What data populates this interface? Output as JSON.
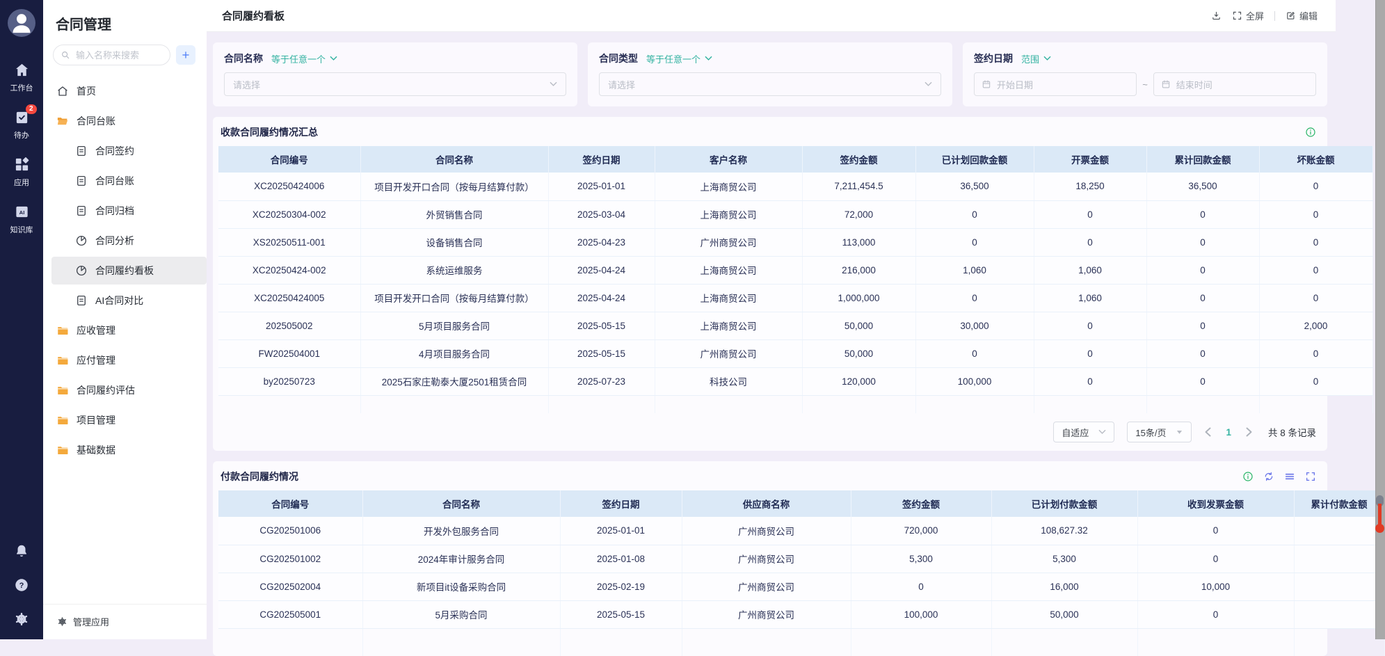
{
  "topbar": {
    "title": "合同履约看板",
    "fullscreen_label": "全屏",
    "edit_label": "编辑"
  },
  "rail": {
    "items": [
      {
        "icon": "home-solid",
        "label": "工作台"
      },
      {
        "icon": "todo",
        "label": "待办",
        "badge": "2"
      },
      {
        "icon": "apps",
        "label": "应用"
      },
      {
        "icon": "ai-book",
        "label": "知识库"
      }
    ],
    "bottom_icons": [
      "bell",
      "question",
      "gear"
    ]
  },
  "sidebar": {
    "title": "合同管理",
    "search_placeholder": "输入名称来搜索",
    "menu": [
      {
        "icon": "home",
        "label": "首页",
        "level": 1
      },
      {
        "icon": "folder-open",
        "label": "合同台账",
        "level": 1
      },
      {
        "icon": "doc",
        "label": "合同签约",
        "level": 2
      },
      {
        "icon": "doc",
        "label": "合同台账",
        "level": 2
      },
      {
        "icon": "doc",
        "label": "合同归档",
        "level": 2
      },
      {
        "icon": "pie",
        "label": "合同分析",
        "level": 2
      },
      {
        "icon": "pie",
        "label": "合同履约看板",
        "level": 2,
        "selected": true
      },
      {
        "icon": "doc",
        "label": "AI合同对比",
        "level": 2
      },
      {
        "icon": "folder",
        "label": "应收管理",
        "level": 1
      },
      {
        "icon": "folder",
        "label": "应付管理",
        "level": 1
      },
      {
        "icon": "folder",
        "label": "合同履约评估",
        "level": 1
      },
      {
        "icon": "folder",
        "label": "项目管理",
        "level": 1
      },
      {
        "icon": "folder",
        "label": "基础数据",
        "level": 1
      }
    ],
    "footer_label": "管理应用"
  },
  "filters": [
    {
      "type": "select",
      "label": "合同名称",
      "operator": "等于任意一个",
      "placeholder": "请选择"
    },
    {
      "type": "select",
      "label": "合同类型",
      "operator": "等于任意一个",
      "placeholder": "请选择"
    },
    {
      "type": "daterange",
      "label": "签约日期",
      "operator": "范围",
      "start_placeholder": "开始日期",
      "separator": "~",
      "end_placeholder": "结束时间"
    }
  ],
  "receivable_table": {
    "title": "收款合同履约情况汇总",
    "columns": [
      "合同编号",
      "合同名称",
      "签约日期",
      "客户名称",
      "签约金额",
      "已计划回款金额",
      "开票金额",
      "累计回款金额",
      "坏账金额"
    ],
    "rows": [
      [
        "XC20250424006",
        "项目开发开口合同（按每月结算付款）",
        "2025-01-01",
        "上海商贸公司",
        "7,211,454.5",
        "36,500",
        "18,250",
        "36,500",
        "0"
      ],
      [
        "XC20250304-002",
        "外贸销售合同",
        "2025-03-04",
        "上海商贸公司",
        "72,000",
        "0",
        "0",
        "0",
        "0"
      ],
      [
        "XS20250511-001",
        "设备销售合同",
        "2025-04-23",
        "广州商贸公司",
        "113,000",
        "0",
        "0",
        "0",
        "0"
      ],
      [
        "XC20250424-002",
        "系统运维服务",
        "2025-04-24",
        "上海商贸公司",
        "216,000",
        "1,060",
        "1,060",
        "0",
        "0"
      ],
      [
        "XC20250424005",
        "项目开发开口合同（按每月结算付款）",
        "2025-04-24",
        "上海商贸公司",
        "1,000,000",
        "0",
        "1,060",
        "0",
        "0"
      ],
      [
        "202505002",
        "5月项目服务合同",
        "2025-05-15",
        "上海商贸公司",
        "50,000",
        "30,000",
        "0",
        "0",
        "2,000"
      ],
      [
        "FW202504001",
        "4月项目服务合同",
        "2025-05-15",
        "广州商贸公司",
        "50,000",
        "0",
        "0",
        "0",
        "0"
      ],
      [
        "by20250723",
        "2025石家庄勒泰大厦2501租赁合同",
        "2025-07-23",
        "科技公司",
        "120,000",
        "100,000",
        "0",
        "0",
        "0"
      ]
    ]
  },
  "pagination": {
    "fit_label": "自适应",
    "page_size_label": "15条/页",
    "current_page": "1",
    "total_label": "共 8 条记录"
  },
  "payable_table": {
    "title": "付款合同履约情况",
    "columns": [
      "合同编号",
      "合同名称",
      "签约日期",
      "供应商名称",
      "签约金额",
      "已计划付款金额",
      "收到发票金额",
      "累计付款金额"
    ],
    "rows": [
      [
        "CG202501006",
        "开发外包服务合同",
        "2025-01-01",
        "广州商贸公司",
        "720,000",
        "108,627.32",
        "0",
        ""
      ],
      [
        "CG202501002",
        "2024年审计服务合同",
        "2025-01-08",
        "广州商贸公司",
        "5,300",
        "5,300",
        "0",
        ""
      ],
      [
        "CG202502004",
        "新项目it设备采购合同",
        "2025-02-19",
        "广州商贸公司",
        "0",
        "16,000",
        "10,000",
        ""
      ],
      [
        "CG202505001",
        "5月采购合同",
        "2025-05-15",
        "广州商贸公司",
        "100,000",
        "50,000",
        "0",
        ""
      ]
    ]
  },
  "colors": {
    "accent_teal": "#35b3a2",
    "icon_purple": "#6672e8",
    "folder_orange": "#f4a93c",
    "info_green": "#24b364",
    "badge_red": "#f5483f",
    "table_header_bg": "#dbe9f7",
    "rail_bg": "#181d40"
  }
}
